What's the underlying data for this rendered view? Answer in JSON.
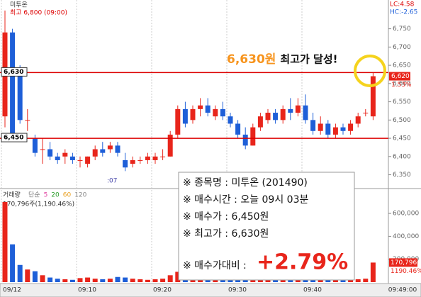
{
  "chart_data": [
    {
      "type": "candlestick",
      "title": "미투온",
      "subtitle": "최고 6,800 (09:00)",
      "categories": [
        "09/12",
        null,
        null,
        null,
        null,
        null,
        null,
        null,
        null,
        null,
        "09:10",
        null,
        null,
        null,
        null,
        null,
        null,
        null,
        null,
        null,
        "09:20",
        null,
        null,
        null,
        null,
        null,
        null,
        null,
        null,
        null,
        "09:30",
        null,
        null,
        null,
        null,
        null,
        null,
        null,
        null,
        null,
        "09:40",
        null,
        null,
        null,
        null,
        null,
        null,
        null,
        null,
        null
      ],
      "open": [
        6510,
        6740,
        6640,
        6500,
        6450,
        6420,
        6420,
        6400,
        6400,
        6400,
        6390,
        6380,
        6400,
        6420,
        6420,
        6430,
        6390,
        6380,
        6390,
        6390,
        6390,
        6400,
        6400,
        6460,
        6530,
        6500,
        6530,
        6540,
        6510,
        6530,
        6510,
        6490,
        6460,
        6430,
        6480,
        6500,
        6520,
        6500,
        6530,
        6520,
        6540,
        6500,
        6470,
        6490,
        6460,
        6480,
        6470,
        6490,
        6520,
        6510
      ],
      "high": [
        6800,
        6750,
        6650,
        6530,
        6460,
        6450,
        6440,
        6410,
        6420,
        6410,
        6400,
        6400,
        6430,
        6440,
        6440,
        6440,
        6410,
        6400,
        6400,
        6410,
        6410,
        6420,
        6470,
        6540,
        6550,
        6540,
        6560,
        6560,
        6540,
        6550,
        6520,
        6500,
        6480,
        6490,
        6520,
        6530,
        6530,
        6540,
        6560,
        6560,
        6570,
        6520,
        6510,
        6500,
        6490,
        6490,
        6500,
        6520,
        6530,
        6630
      ],
      "low": [
        6480,
        6440,
        6490,
        6470,
        6400,
        6380,
        6390,
        6380,
        6380,
        6380,
        6370,
        6370,
        6390,
        6400,
        6410,
        6400,
        6360,
        6370,
        6380,
        6380,
        6380,
        6390,
        6400,
        6450,
        6480,
        6490,
        6510,
        6510,
        6500,
        6500,
        6480,
        6450,
        6420,
        6430,
        6470,
        6490,
        6490,
        6490,
        6500,
        6510,
        6490,
        6460,
        6460,
        6450,
        6450,
        6460,
        6460,
        6480,
        6510,
        6500
      ],
      "close": [
        6740,
        6460,
        6500,
        6500,
        6410,
        6420,
        6400,
        6390,
        6410,
        6390,
        6390,
        6400,
        6420,
        6410,
        6430,
        6410,
        6370,
        6390,
        6390,
        6400,
        6400,
        6400,
        6460,
        6530,
        6490,
        6530,
        6540,
        6520,
        6530,
        6510,
        6490,
        6460,
        6430,
        6480,
        6510,
        6520,
        6500,
        6530,
        6520,
        6540,
        6500,
        6470,
        6490,
        6460,
        6480,
        6470,
        6490,
        6510,
        6520,
        6620
      ],
      "close_labels": [
        null,
        null,
        null,
        null,
        null,
        null,
        null,
        null,
        null,
        null,
        null,
        null,
        null,
        null,
        null,
        null,
        null,
        null,
        null,
        null,
        null,
        null,
        null,
        null,
        null,
        null,
        null,
        null,
        null,
        null,
        null,
        null,
        null,
        null,
        null,
        null,
        null,
        null,
        null,
        null,
        null,
        null,
        null,
        null,
        null,
        null,
        null,
        null,
        null,
        "6,620"
      ],
      "up_color": "#e8251b",
      "down_color": "#1e5fd8",
      "ylim": [
        6320,
        6825
      ],
      "yticks": [
        {
          "value": 6350,
          "label": "6,350"
        },
        {
          "value": 6400,
          "label": "6,400"
        },
        {
          "value": 6450,
          "label": "6,450"
        },
        {
          "value": 6500,
          "label": "6,500"
        },
        {
          "value": 6550,
          "label": "6,550"
        },
        {
          "value": 6600,
          "label": "6,600"
        },
        {
          "value": 6650,
          "label": "6,650"
        },
        {
          "value": 6700,
          "label": "6,700"
        },
        {
          "value": 6750,
          "label": "6,750"
        }
      ],
      "hlines": [
        {
          "value": 6630,
          "label": "6,630"
        },
        {
          "value": 6450,
          "label": "6,450"
        }
      ],
      "change": "1.53%",
      "lc": "LC:4.58",
      "hc": "HC:-2.65",
      "annotation_price": "6,630원",
      "annotation_text": "최고가 달성!",
      "marker": ":07",
      "cursor_time": "09:49:00"
    },
    {
      "type": "bar",
      "title": "거래량",
      "legend": [
        {
          "name": "단순",
          "color": "#777"
        },
        {
          "name": "5",
          "color": "#e040a0"
        },
        {
          "name": "20",
          "color": "#2a9d2a"
        },
        {
          "name": "60",
          "color": "#e9a020"
        },
        {
          "name": "120",
          "color": "#888"
        }
      ],
      "header": "170,796주(1,190.46%)",
      "values": [
        700000,
        330000,
        150000,
        110000,
        95000,
        60000,
        40000,
        30000,
        25000,
        20000,
        35000,
        40000,
        30000,
        25000,
        30000,
        45000,
        40000,
        30000,
        25000,
        20000,
        25000,
        30000,
        60000,
        90000,
        45000,
        35000,
        30000,
        25000,
        20000,
        25000,
        30000,
        35000,
        40000,
        30000,
        25000,
        20000,
        25000,
        20000,
        30000,
        25000,
        20000,
        25000,
        20000,
        25000,
        20000,
        15000,
        20000,
        25000,
        30000,
        170796
      ],
      "value_labels": [
        null,
        null,
        null,
        null,
        null,
        null,
        null,
        null,
        null,
        null,
        null,
        null,
        null,
        null,
        null,
        null,
        null,
        null,
        null,
        null,
        null,
        null,
        null,
        null,
        null,
        null,
        null,
        null,
        null,
        null,
        null,
        null,
        null,
        null,
        null,
        null,
        null,
        null,
        null,
        null,
        null,
        null,
        null,
        null,
        null,
        null,
        null,
        null,
        null,
        "170,796"
      ],
      "ratio": "1190.46%",
      "ylim": [
        0,
        780000
      ],
      "yticks": [
        {
          "value": 200000,
          "label": "200,000"
        },
        {
          "value": 400000,
          "label": "400,000"
        },
        {
          "value": 600000,
          "label": "600,000"
        }
      ]
    }
  ],
  "info_box": {
    "rows": [
      "※ 종목명 : 미투온 (201490)",
      "※ 매수시간 : 오늘 09시 03분",
      "※ 매수가 : 6,450원",
      "※ 최고가 : 6,630원"
    ],
    "compare_label": "※ 매수가대비 :",
    "compare_value": "+2.79%"
  }
}
